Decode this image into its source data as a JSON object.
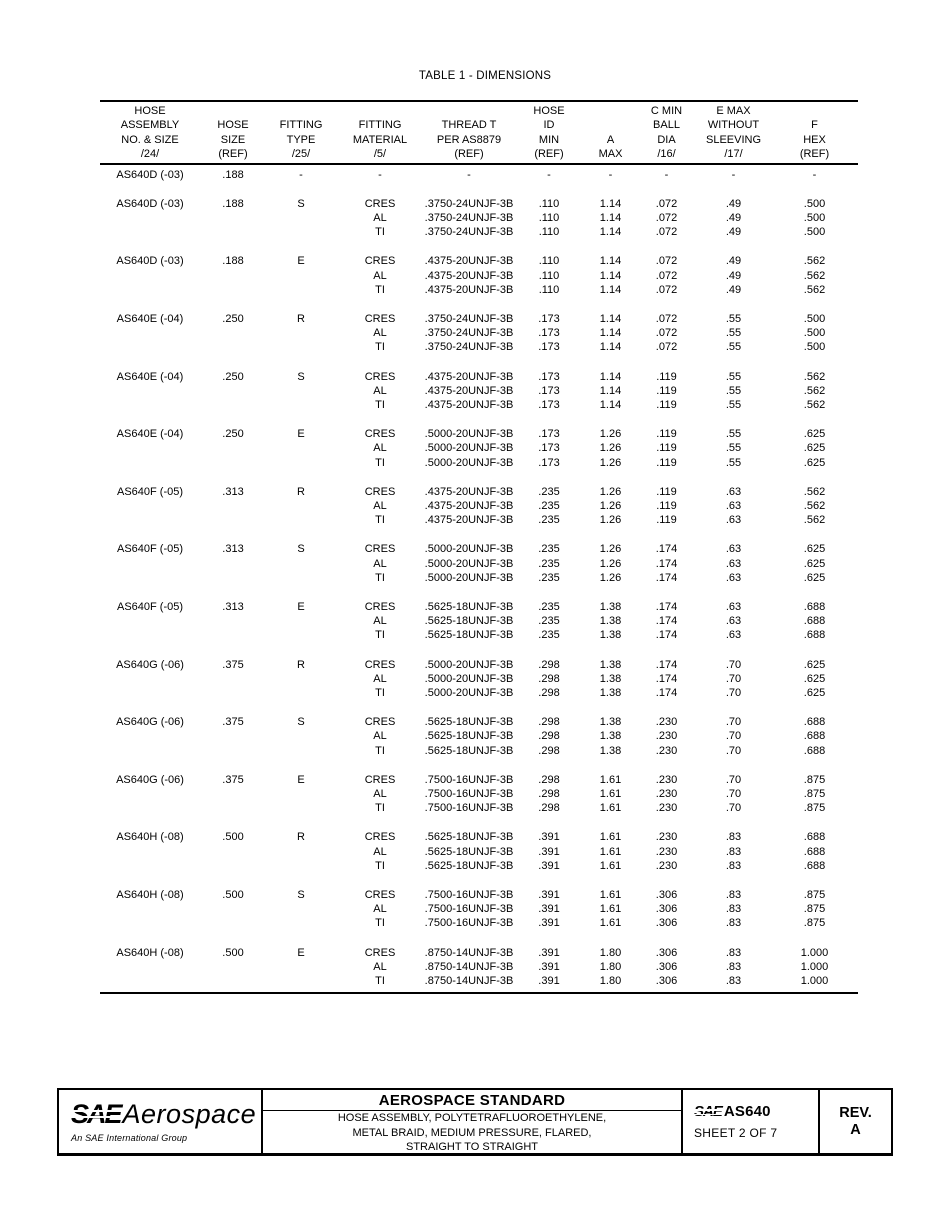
{
  "page": {
    "title": "TABLE 1 - DIMENSIONS"
  },
  "table": {
    "columns": [
      {
        "key": "assembly",
        "lines": [
          "HOSE",
          "ASSEMBLY",
          "NO. & SIZE",
          "/24/"
        ]
      },
      {
        "key": "size",
        "lines": [
          "HOSE",
          "SIZE",
          "(REF)"
        ]
      },
      {
        "key": "type",
        "lines": [
          "FITTING",
          "TYPE",
          "/25/"
        ]
      },
      {
        "key": "material",
        "lines": [
          "FITTING",
          "MATERIAL",
          "/5/"
        ]
      },
      {
        "key": "thread",
        "lines": [
          "THREAD T",
          "PER AS8879",
          "(REF)"
        ]
      },
      {
        "key": "id_min",
        "lines": [
          "HOSE",
          "ID",
          "MIN",
          "(REF)"
        ]
      },
      {
        "key": "a_max",
        "lines": [
          "A",
          "MAX"
        ]
      },
      {
        "key": "c_min",
        "lines": [
          "C MIN",
          "BALL",
          "DIA",
          "/16/"
        ]
      },
      {
        "key": "e_max",
        "lines": [
          "E MAX",
          "WITHOUT",
          "SLEEVING",
          "/17/"
        ]
      },
      {
        "key": "f_hex",
        "lines": [
          "F",
          "HEX",
          "(REF)"
        ]
      }
    ],
    "groups": [
      {
        "assembly": "AS640D (-03)",
        "size": ".188",
        "type": "-",
        "rows": [
          {
            "material": "-",
            "thread": "-",
            "id_min": "-",
            "a_max": "-",
            "c_min": "-",
            "e_max": "-",
            "f_hex": "-"
          }
        ]
      },
      {
        "assembly": "AS640D (-03)",
        "size": ".188",
        "type": "S",
        "rows": [
          {
            "material": "CRES",
            "thread": ".3750-24UNJF-3B",
            "id_min": ".110",
            "a_max": "1.14",
            "c_min": ".072",
            "e_max": ".49",
            "f_hex": ".500"
          },
          {
            "material": "AL",
            "thread": ".3750-24UNJF-3B",
            "id_min": ".110",
            "a_max": "1.14",
            "c_min": ".072",
            "e_max": ".49",
            "f_hex": ".500"
          },
          {
            "material": "TI",
            "thread": ".3750-24UNJF-3B",
            "id_min": ".110",
            "a_max": "1.14",
            "c_min": ".072",
            "e_max": ".49",
            "f_hex": ".500"
          }
        ]
      },
      {
        "assembly": "AS640D (-03)",
        "size": ".188",
        "type": "E",
        "rows": [
          {
            "material": "CRES",
            "thread": ".4375-20UNJF-3B",
            "id_min": ".110",
            "a_max": "1.14",
            "c_min": ".072",
            "e_max": ".49",
            "f_hex": ".562"
          },
          {
            "material": "AL",
            "thread": ".4375-20UNJF-3B",
            "id_min": ".110",
            "a_max": "1.14",
            "c_min": ".072",
            "e_max": ".49",
            "f_hex": ".562"
          },
          {
            "material": "TI",
            "thread": ".4375-20UNJF-3B",
            "id_min": ".110",
            "a_max": "1.14",
            "c_min": ".072",
            "e_max": ".49",
            "f_hex": ".562"
          }
        ]
      },
      {
        "assembly": "AS640E (-04)",
        "size": ".250",
        "type": "R",
        "rows": [
          {
            "material": "CRES",
            "thread": ".3750-24UNJF-3B",
            "id_min": ".173",
            "a_max": "1.14",
            "c_min": ".072",
            "e_max": ".55",
            "f_hex": ".500"
          },
          {
            "material": "AL",
            "thread": ".3750-24UNJF-3B",
            "id_min": ".173",
            "a_max": "1.14",
            "c_min": ".072",
            "e_max": ".55",
            "f_hex": ".500"
          },
          {
            "material": "TI",
            "thread": ".3750-24UNJF-3B",
            "id_min": ".173",
            "a_max": "1.14",
            "c_min": ".072",
            "e_max": ".55",
            "f_hex": ".500"
          }
        ]
      },
      {
        "assembly": "AS640E (-04)",
        "size": ".250",
        "type": "S",
        "rows": [
          {
            "material": "CRES",
            "thread": ".4375-20UNJF-3B",
            "id_min": ".173",
            "a_max": "1.14",
            "c_min": ".119",
            "e_max": ".55",
            "f_hex": ".562"
          },
          {
            "material": "AL",
            "thread": ".4375-20UNJF-3B",
            "id_min": ".173",
            "a_max": "1.14",
            "c_min": ".119",
            "e_max": ".55",
            "f_hex": ".562"
          },
          {
            "material": "TI",
            "thread": ".4375-20UNJF-3B",
            "id_min": ".173",
            "a_max": "1.14",
            "c_min": ".119",
            "e_max": ".55",
            "f_hex": ".562"
          }
        ]
      },
      {
        "assembly": "AS640E (-04)",
        "size": ".250",
        "type": "E",
        "rows": [
          {
            "material": "CRES",
            "thread": ".5000-20UNJF-3B",
            "id_min": ".173",
            "a_max": "1.26",
            "c_min": ".119",
            "e_max": ".55",
            "f_hex": ".625"
          },
          {
            "material": "AL",
            "thread": ".5000-20UNJF-3B",
            "id_min": ".173",
            "a_max": "1.26",
            "c_min": ".119",
            "e_max": ".55",
            "f_hex": ".625"
          },
          {
            "material": "TI",
            "thread": ".5000-20UNJF-3B",
            "id_min": ".173",
            "a_max": "1.26",
            "c_min": ".119",
            "e_max": ".55",
            "f_hex": ".625"
          }
        ]
      },
      {
        "assembly": "AS640F (-05)",
        "size": ".313",
        "type": "R",
        "rows": [
          {
            "material": "CRES",
            "thread": ".4375-20UNJF-3B",
            "id_min": ".235",
            "a_max": "1.26",
            "c_min": ".119",
            "e_max": ".63",
            "f_hex": ".562"
          },
          {
            "material": "AL",
            "thread": ".4375-20UNJF-3B",
            "id_min": ".235",
            "a_max": "1.26",
            "c_min": ".119",
            "e_max": ".63",
            "f_hex": ".562"
          },
          {
            "material": "TI",
            "thread": ".4375-20UNJF-3B",
            "id_min": ".235",
            "a_max": "1.26",
            "c_min": ".119",
            "e_max": ".63",
            "f_hex": ".562"
          }
        ]
      },
      {
        "assembly": "AS640F (-05)",
        "size": ".313",
        "type": "S",
        "rows": [
          {
            "material": "CRES",
            "thread": ".5000-20UNJF-3B",
            "id_min": ".235",
            "a_max": "1.26",
            "c_min": ".174",
            "e_max": ".63",
            "f_hex": ".625"
          },
          {
            "material": "AL",
            "thread": ".5000-20UNJF-3B",
            "id_min": ".235",
            "a_max": "1.26",
            "c_min": ".174",
            "e_max": ".63",
            "f_hex": ".625"
          },
          {
            "material": "TI",
            "thread": ".5000-20UNJF-3B",
            "id_min": ".235",
            "a_max": "1.26",
            "c_min": ".174",
            "e_max": ".63",
            "f_hex": ".625"
          }
        ]
      },
      {
        "assembly": "AS640F (-05)",
        "size": ".313",
        "type": "E",
        "rows": [
          {
            "material": "CRES",
            "thread": ".5625-18UNJF-3B",
            "id_min": ".235",
            "a_max": "1.38",
            "c_min": ".174",
            "e_max": ".63",
            "f_hex": ".688"
          },
          {
            "material": "AL",
            "thread": ".5625-18UNJF-3B",
            "id_min": ".235",
            "a_max": "1.38",
            "c_min": ".174",
            "e_max": ".63",
            "f_hex": ".688"
          },
          {
            "material": "TI",
            "thread": ".5625-18UNJF-3B",
            "id_min": ".235",
            "a_max": "1.38",
            "c_min": ".174",
            "e_max": ".63",
            "f_hex": ".688"
          }
        ]
      },
      {
        "assembly": "AS640G (-06)",
        "size": ".375",
        "type": "R",
        "rows": [
          {
            "material": "CRES",
            "thread": ".5000-20UNJF-3B",
            "id_min": ".298",
            "a_max": "1.38",
            "c_min": ".174",
            "e_max": ".70",
            "f_hex": ".625"
          },
          {
            "material": "AL",
            "thread": ".5000-20UNJF-3B",
            "id_min": ".298",
            "a_max": "1.38",
            "c_min": ".174",
            "e_max": ".70",
            "f_hex": ".625"
          },
          {
            "material": "TI",
            "thread": ".5000-20UNJF-3B",
            "id_min": ".298",
            "a_max": "1.38",
            "c_min": ".174",
            "e_max": ".70",
            "f_hex": ".625"
          }
        ]
      },
      {
        "assembly": "AS640G (-06)",
        "size": ".375",
        "type": "S",
        "rows": [
          {
            "material": "CRES",
            "thread": ".5625-18UNJF-3B",
            "id_min": ".298",
            "a_max": "1.38",
            "c_min": ".230",
            "e_max": ".70",
            "f_hex": ".688"
          },
          {
            "material": "AL",
            "thread": ".5625-18UNJF-3B",
            "id_min": ".298",
            "a_max": "1.38",
            "c_min": ".230",
            "e_max": ".70",
            "f_hex": ".688"
          },
          {
            "material": "TI",
            "thread": ".5625-18UNJF-3B",
            "id_min": ".298",
            "a_max": "1.38",
            "c_min": ".230",
            "e_max": ".70",
            "f_hex": ".688"
          }
        ]
      },
      {
        "assembly": "AS640G (-06)",
        "size": ".375",
        "type": "E",
        "rows": [
          {
            "material": "CRES",
            "thread": ".7500-16UNJF-3B",
            "id_min": ".298",
            "a_max": "1.61",
            "c_min": ".230",
            "e_max": ".70",
            "f_hex": ".875"
          },
          {
            "material": "AL",
            "thread": ".7500-16UNJF-3B",
            "id_min": ".298",
            "a_max": "1.61",
            "c_min": ".230",
            "e_max": ".70",
            "f_hex": ".875"
          },
          {
            "material": "TI",
            "thread": ".7500-16UNJF-3B",
            "id_min": ".298",
            "a_max": "1.61",
            "c_min": ".230",
            "e_max": ".70",
            "f_hex": ".875"
          }
        ]
      },
      {
        "assembly": "AS640H (-08)",
        "size": ".500",
        "type": "R",
        "rows": [
          {
            "material": "CRES",
            "thread": ".5625-18UNJF-3B",
            "id_min": ".391",
            "a_max": "1.61",
            "c_min": ".230",
            "e_max": ".83",
            "f_hex": ".688"
          },
          {
            "material": "AL",
            "thread": ".5625-18UNJF-3B",
            "id_min": ".391",
            "a_max": "1.61",
            "c_min": ".230",
            "e_max": ".83",
            "f_hex": ".688"
          },
          {
            "material": "TI",
            "thread": ".5625-18UNJF-3B",
            "id_min": ".391",
            "a_max": "1.61",
            "c_min": ".230",
            "e_max": ".83",
            "f_hex": ".688"
          }
        ]
      },
      {
        "assembly": "AS640H (-08)",
        "size": ".500",
        "type": "S",
        "rows": [
          {
            "material": "CRES",
            "thread": ".7500-16UNJF-3B",
            "id_min": ".391",
            "a_max": "1.61",
            "c_min": ".306",
            "e_max": ".83",
            "f_hex": ".875"
          },
          {
            "material": "AL",
            "thread": ".7500-16UNJF-3B",
            "id_min": ".391",
            "a_max": "1.61",
            "c_min": ".306",
            "e_max": ".83",
            "f_hex": ".875"
          },
          {
            "material": "TI",
            "thread": ".7500-16UNJF-3B",
            "id_min": ".391",
            "a_max": "1.61",
            "c_min": ".306",
            "e_max": ".83",
            "f_hex": ".875"
          }
        ]
      },
      {
        "assembly": "AS640H (-08)",
        "size": ".500",
        "type": "E",
        "rows": [
          {
            "material": "CRES",
            "thread": ".8750-14UNJF-3B",
            "id_min": ".391",
            "a_max": "1.80",
            "c_min": ".306",
            "e_max": ".83",
            "f_hex": "1.000"
          },
          {
            "material": "AL",
            "thread": ".8750-14UNJF-3B",
            "id_min": ".391",
            "a_max": "1.80",
            "c_min": ".306",
            "e_max": ".83",
            "f_hex": "1.000"
          },
          {
            "material": "TI",
            "thread": ".8750-14UNJF-3B",
            "id_min": ".391",
            "a_max": "1.80",
            "c_min": ".306",
            "e_max": ".83",
            "f_hex": "1.000"
          }
        ]
      }
    ]
  },
  "footer": {
    "logo": {
      "sae": "SAE",
      "brand": "Aerospace",
      "tagline": "An SAE International Group"
    },
    "standard_title": "AEROSPACE STANDARD",
    "subtitle_lines": [
      "HOSE ASSEMBLY, POLYTETRAFLUOROETHYLENE,",
      "METAL BRAID, MEDIUM PRESSURE, FLARED,",
      "STRAIGHT TO STRAIGHT"
    ],
    "doc": {
      "sae": "SAE",
      "number": "AS640",
      "sheet": "SHEET 2 OF 7"
    },
    "rev": {
      "label": "REV.",
      "value": "A"
    }
  }
}
